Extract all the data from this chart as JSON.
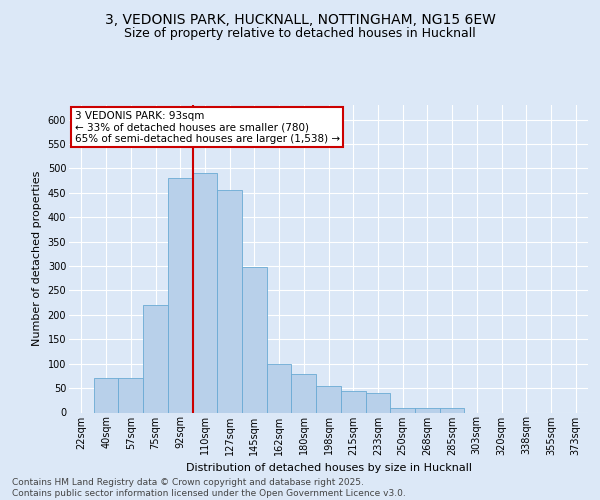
{
  "title1": "3, VEDONIS PARK, HUCKNALL, NOTTINGHAM, NG15 6EW",
  "title2": "Size of property relative to detached houses in Hucknall",
  "xlabel": "Distribution of detached houses by size in Hucknall",
  "ylabel": "Number of detached properties",
  "categories": [
    "22sqm",
    "40sqm",
    "57sqm",
    "75sqm",
    "92sqm",
    "110sqm",
    "127sqm",
    "145sqm",
    "162sqm",
    "180sqm",
    "198sqm",
    "215sqm",
    "233sqm",
    "250sqm",
    "268sqm",
    "285sqm",
    "303sqm",
    "320sqm",
    "338sqm",
    "355sqm",
    "373sqm"
  ],
  "values": [
    0,
    70,
    70,
    220,
    480,
    490,
    455,
    298,
    100,
    78,
    55,
    45,
    40,
    10,
    10,
    10,
    0,
    0,
    0,
    0,
    0
  ],
  "bar_color": "#b8d0ea",
  "bar_edge_color": "#6aaad4",
  "highlight_line_color": "#cc0000",
  "bg_color": "#dce8f7",
  "plot_bg_color": "#dce8f7",
  "ylim": [
    0,
    630
  ],
  "yticks": [
    0,
    50,
    100,
    150,
    200,
    250,
    300,
    350,
    400,
    450,
    500,
    550,
    600
  ],
  "annotation_text": "3 VEDONIS PARK: 93sqm\n← 33% of detached houses are smaller (780)\n65% of semi-detached houses are larger (1,538) →",
  "annotation_box_color": "#cc0000",
  "footer": "Contains HM Land Registry data © Crown copyright and database right 2025.\nContains public sector information licensed under the Open Government Licence v3.0.",
  "title_fontsize": 10,
  "subtitle_fontsize": 9,
  "axis_label_fontsize": 8,
  "tick_fontsize": 7,
  "annotation_fontsize": 7.5,
  "footer_fontsize": 6.5
}
